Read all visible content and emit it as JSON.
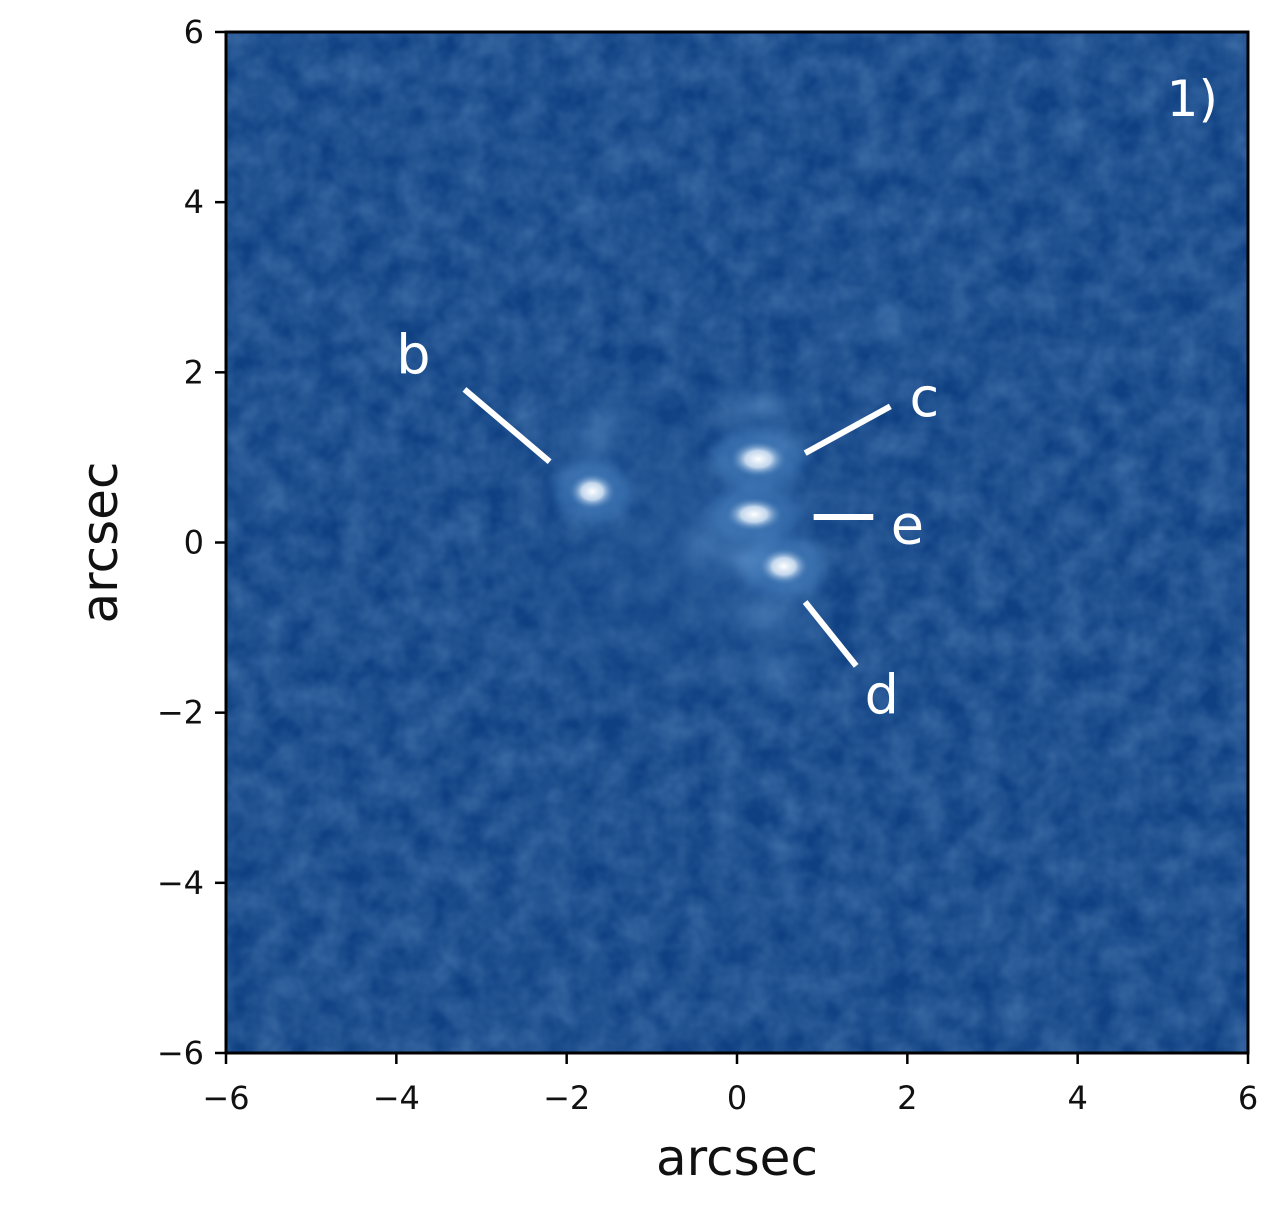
{
  "panel_label": "1)",
  "chart_data": {
    "type": "image",
    "xlabel": "arcsec",
    "ylabel": "arcsec",
    "xlim": [
      -6,
      6
    ],
    "ylim": [
      -6,
      6
    ],
    "x_ticks": [
      -6,
      -4,
      -2,
      0,
      2,
      4,
      6
    ],
    "y_ticks": [
      -6,
      -4,
      -2,
      0,
      2,
      4,
      6
    ],
    "x_tick_labels": [
      "−6",
      "−4",
      "−2",
      "0",
      "2",
      "4",
      "6"
    ],
    "y_tick_labels": [
      "−6",
      "−4",
      "−2",
      "0",
      "2",
      "4",
      "6"
    ],
    "colors": {
      "background": "#0f4082",
      "glow": "#4a84c2",
      "source": "#ffffff",
      "annotation": "#ffffff"
    },
    "sources": [
      {
        "label": "b",
        "x": -1.7,
        "y": 0.6,
        "sx": 0.28,
        "sy": 0.22,
        "intensity": 1.0
      },
      {
        "label": "c",
        "x": 0.25,
        "y": 0.98,
        "sx": 0.34,
        "sy": 0.22,
        "intensity": 1.0
      },
      {
        "label": "e",
        "x": 0.2,
        "y": 0.33,
        "sx": 0.34,
        "sy": 0.2,
        "intensity": 1.0
      },
      {
        "label": "d",
        "x": 0.55,
        "y": -0.28,
        "sx": 0.3,
        "sy": 0.22,
        "intensity": 1.0
      }
    ],
    "diffuse_features": [
      {
        "x": -1.65,
        "y": 1.3,
        "sx": 0.3,
        "sy": 0.3,
        "intensity": 0.3
      },
      {
        "x": 0.3,
        "y": 1.6,
        "sx": 0.4,
        "sy": 0.2,
        "intensity": 0.35
      },
      {
        "x": -0.35,
        "y": 0.0,
        "sx": 0.25,
        "sy": 0.2,
        "intensity": 0.3
      },
      {
        "x": 0.1,
        "y": -0.2,
        "sx": 0.3,
        "sy": 0.18,
        "intensity": 0.5
      },
      {
        "x": 0.35,
        "y": -0.85,
        "sx": 0.45,
        "sy": 0.2,
        "intensity": 0.35
      },
      {
        "x": 0.4,
        "y": -1.5,
        "sx": 0.3,
        "sy": 0.3,
        "intensity": 0.2
      },
      {
        "x": 1.75,
        "y": 2.65,
        "sx": 0.25,
        "sy": 0.22,
        "intensity": 0.25
      }
    ],
    "annotations": [
      {
        "label": "b",
        "line": [
          [
            -3.2,
            1.8
          ],
          [
            -2.2,
            0.95
          ]
        ],
        "text_at": [
          -3.8,
          2.2
        ]
      },
      {
        "label": "c",
        "line": [
          [
            0.8,
            1.05
          ],
          [
            1.8,
            1.6
          ]
        ],
        "text_at": [
          2.2,
          1.7
        ]
      },
      {
        "label": "e",
        "line": [
          [
            0.9,
            0.3
          ],
          [
            1.6,
            0.3
          ]
        ],
        "text_at": [
          2.0,
          0.2
        ]
      },
      {
        "label": "d",
        "line": [
          [
            0.8,
            -0.7
          ],
          [
            1.4,
            -1.45
          ]
        ],
        "text_at": [
          1.7,
          -1.8
        ]
      }
    ]
  }
}
